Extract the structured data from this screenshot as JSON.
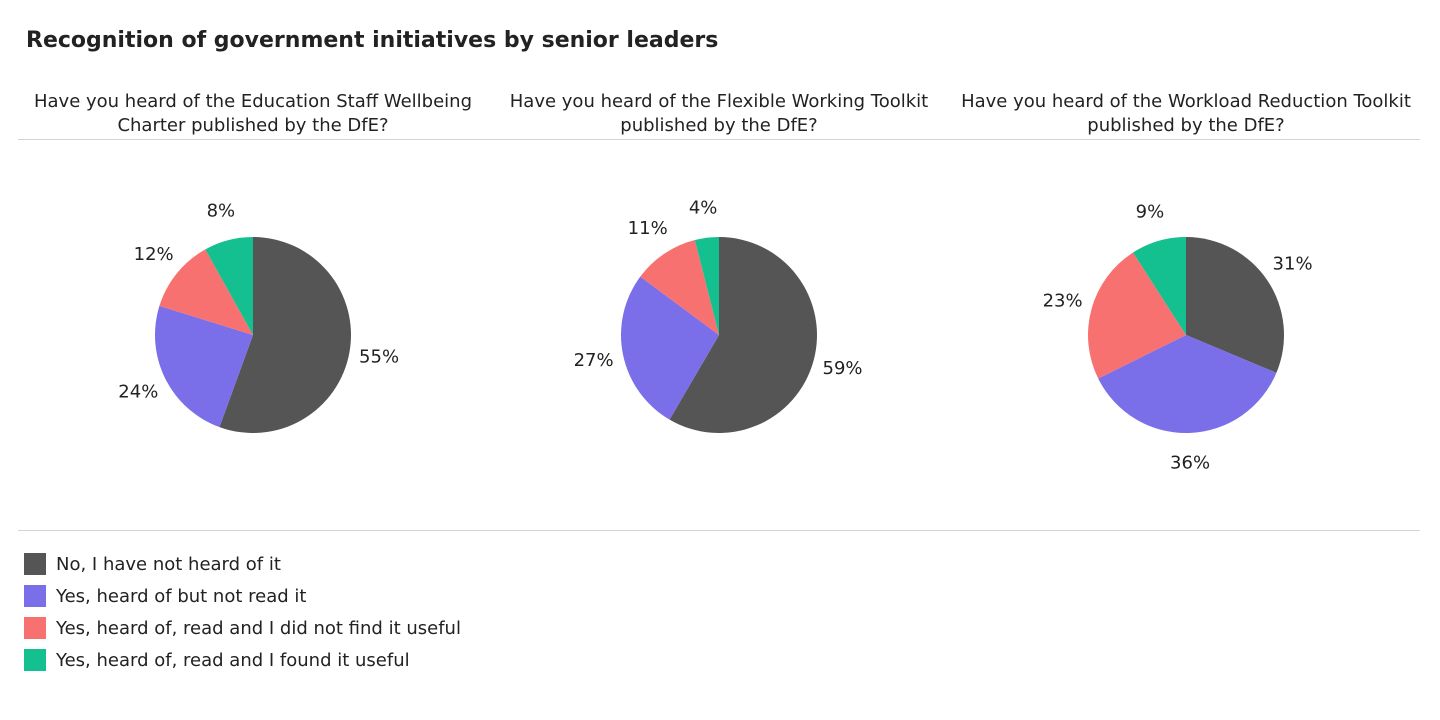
{
  "title": "Recognition of government initiatives by senior leaders",
  "colors": {
    "no_heard": "#555555",
    "heard_not_read": "#7b6fe9",
    "read_not_useful": "#f87171",
    "read_useful": "#14c08f"
  },
  "legend": [
    {
      "label": "No, I have not heard of it",
      "color": "#555555"
    },
    {
      "label": "Yes, heard of but not read it",
      "color": "#7b6fe9"
    },
    {
      "label": "Yes, heard of, read and I did not find it useful",
      "color": "#f87171"
    },
    {
      "label": "Yes, heard of, read and I found it useful",
      "color": "#14c08f"
    }
  ],
  "chart_data": [
    {
      "type": "pie",
      "title_lines": [
        "Have you heard of the Education Staff Wellbeing",
        "Charter published by the DfE?"
      ],
      "categories": [
        "No, I have not heard of it",
        "Yes, heard of but not read it",
        "Yes, heard of, read and I did not find it useful",
        "Yes, heard of, read and I found it useful"
      ],
      "values": [
        55,
        24,
        12,
        8
      ],
      "labels": [
        "55%",
        "24%",
        "12%",
        "8%"
      ]
    },
    {
      "type": "pie",
      "title_lines": [
        "Have you heard of the Flexible Working Toolkit",
        "published by the DfE?"
      ],
      "categories": [
        "No, I have not heard of it",
        "Yes, heard of but not read it",
        "Yes, heard of, read and I did not find it useful",
        "Yes, heard of, read and I found it useful"
      ],
      "values": [
        59,
        27,
        11,
        4
      ],
      "labels": [
        "59%",
        "27%",
        "11%",
        "4%"
      ]
    },
    {
      "type": "pie",
      "title_lines": [
        "Have you heard of the Workload Reduction Toolkit",
        "published by the DfE?"
      ],
      "categories": [
        "No, I have not heard of it",
        "Yes, heard of but not read it",
        "Yes, heard of, read and I did not find it useful",
        "Yes, heard of, read and I found it useful"
      ],
      "values": [
        31,
        36,
        23,
        9
      ],
      "labels": [
        "31%",
        "36%",
        "23%",
        "9%"
      ]
    }
  ]
}
